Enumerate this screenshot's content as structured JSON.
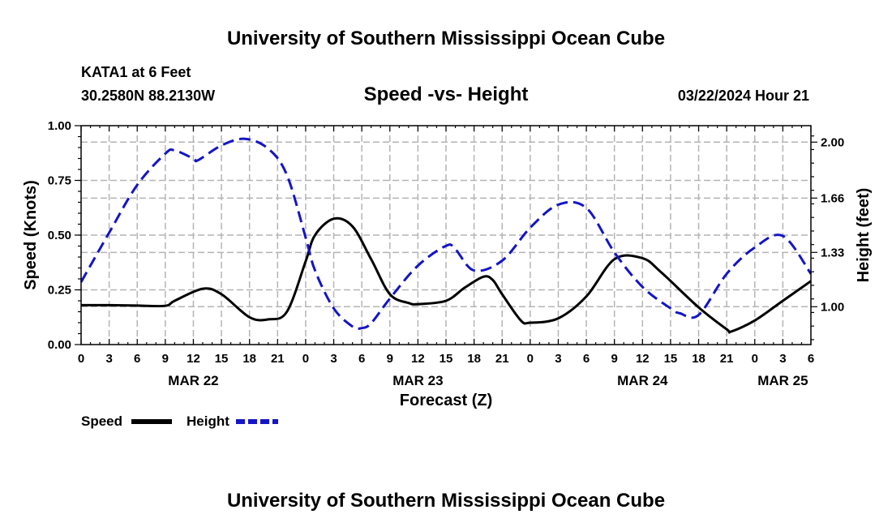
{
  "header": {
    "title": "University of Southern Mississippi Ocean Cube",
    "station": "KATA1 at 6 Feet",
    "coords": "30.2580N  88.2130W",
    "chart_title": "Speed -vs- Height",
    "timestamp": "03/22/2024 Hour 21"
  },
  "footer": {
    "title": "University of Southern Mississippi Ocean Cube"
  },
  "colors": {
    "speed": "#000000",
    "height": "#1414c8"
  },
  "chart_data": {
    "type": "line",
    "title": "Speed -vs- Height",
    "xlabel": "Forecast (Z)",
    "ylabel_left": "Speed (Knots)",
    "ylabel_right": "Height (feet)",
    "x_unit": "hours since MAR 22 00Z",
    "xlim": [
      0,
      78
    ],
    "ylim_left": [
      0,
      1.0
    ],
    "ylim_right": [
      0.77,
      2.1
    ],
    "y_ticks_left": [
      "0.00",
      "0.25",
      "0.50",
      "0.75",
      "1.00"
    ],
    "y_tick_values_left": [
      0,
      0.25,
      0.5,
      0.75,
      1.0
    ],
    "y_ticks_right": [
      "1.00",
      "1.33",
      "1.66",
      "2.00"
    ],
    "y_tick_values_right": [
      1.0,
      1.33,
      1.66,
      2.0
    ],
    "x_ticks": [
      "0",
      "3",
      "6",
      "9",
      "12",
      "15",
      "18",
      "21",
      "0",
      "3",
      "6",
      "9",
      "12",
      "15",
      "18",
      "21",
      "0",
      "3",
      "6",
      "9",
      "12",
      "15",
      "18",
      "21",
      "0",
      "3",
      "6"
    ],
    "x_tick_values": [
      0,
      3,
      6,
      9,
      12,
      15,
      18,
      21,
      24,
      27,
      30,
      33,
      36,
      39,
      42,
      45,
      48,
      51,
      54,
      57,
      60,
      63,
      66,
      69,
      72,
      75,
      78
    ],
    "date_labels": [
      "MAR 22",
      "MAR 23",
      "MAR 24",
      "MAR 25"
    ],
    "date_label_hours": [
      12,
      36,
      60,
      75
    ],
    "series": [
      {
        "name": "Speed",
        "axis": "left",
        "x": [
          0,
          3,
          6,
          9,
          10,
          13,
          15,
          18,
          20,
          22,
          24,
          25,
          27,
          29,
          31,
          33,
          35,
          36,
          39,
          41,
          43,
          44,
          45,
          47,
          48,
          51,
          54,
          57,
          60,
          62,
          66,
          69,
          69.5,
          72,
          75,
          78
        ],
        "values": [
          0.18,
          0.18,
          0.178,
          0.177,
          0.2,
          0.255,
          0.23,
          0.125,
          0.115,
          0.15,
          0.38,
          0.5,
          0.575,
          0.54,
          0.39,
          0.23,
          0.19,
          0.185,
          0.2,
          0.26,
          0.31,
          0.295,
          0.23,
          0.11,
          0.1,
          0.12,
          0.22,
          0.39,
          0.395,
          0.33,
          0.17,
          0.07,
          0.06,
          0.11,
          0.2,
          0.29
        ]
      },
      {
        "name": "Height",
        "axis": "right",
        "x": [
          0,
          3,
          6,
          9,
          10,
          12,
          12.5,
          15,
          17.5,
          20,
          22,
          24,
          25,
          27,
          29,
          30,
          31,
          33,
          36,
          39,
          40,
          42,
          45,
          48,
          51,
          54,
          57,
          60,
          63,
          64,
          66,
          69,
          72,
          75,
          78
        ],
        "values": [
          1.15,
          1.45,
          1.74,
          1.93,
          1.95,
          1.9,
          1.89,
          1.98,
          2.02,
          1.96,
          1.8,
          1.42,
          1.22,
          0.99,
          0.88,
          0.87,
          0.9,
          1.05,
          1.25,
          1.37,
          1.35,
          1.22,
          1.28,
          1.48,
          1.62,
          1.6,
          1.33,
          1.12,
          0.99,
          0.96,
          0.95,
          1.2,
          1.36,
          1.43,
          1.2
        ]
      }
    ],
    "legend": [
      "Speed",
      "Height"
    ],
    "legend_position": "bottom-left",
    "grid": true
  }
}
